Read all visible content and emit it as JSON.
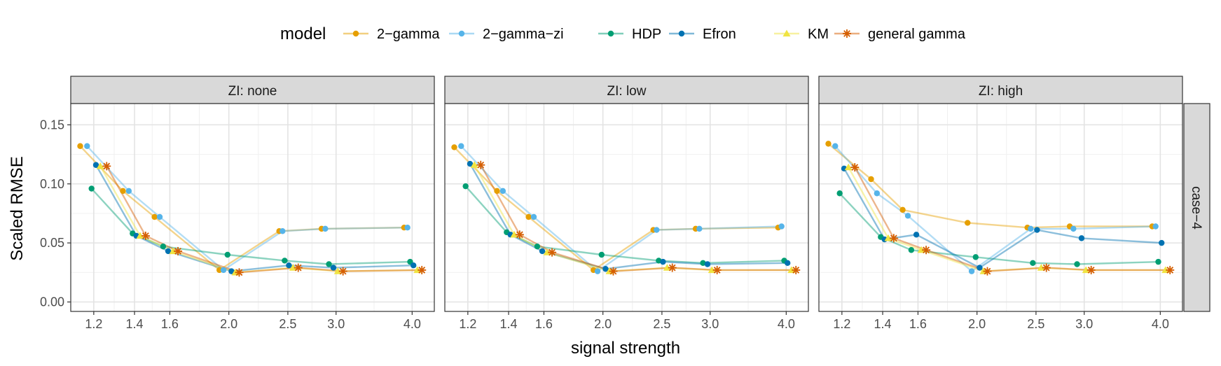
{
  "chart_data": {
    "type": "line",
    "xlabel": "signal strength",
    "ylabel": "Scaled RMSE",
    "x_ticks": [
      "1.2",
      "1.4",
      "1.6",
      "2.0",
      "2.5",
      "3.0",
      "4.0"
    ],
    "x_tick_values": [
      1.2,
      1.4,
      1.6,
      2.0,
      2.5,
      3.0,
      4.0
    ],
    "y_ticks": [
      "0.00",
      "0.05",
      "0.10",
      "0.15"
    ],
    "y_tick_values": [
      0,
      0.05,
      0.1,
      0.15
    ],
    "x_scale": "log",
    "xlim": [
      1.1,
      4.35
    ],
    "ylim": [
      -0.008,
      0.168
    ],
    "legend_title": "model",
    "legend_position": "top",
    "row_label": "case−4",
    "grid": true,
    "colors": {
      "2-gamma": "#E69F00",
      "2-gamma-zi": "#56B4E9",
      "HDP": "#009E73",
      "Efron": "#0072B2",
      "KM": "#F0E442",
      "general gamma": "#D55E00"
    },
    "series_names": [
      "2−gamma",
      "2−gamma−zi",
      "HDP",
      "Efron",
      "KM",
      "general gamma"
    ],
    "series_keys": [
      "2-gamma",
      "2-gamma-zi",
      "HDP",
      "Efron",
      "KM",
      "general gamma"
    ],
    "panels": [
      {
        "label": "ZI: none",
        "series": [
          {
            "name": "2-gamma",
            "x": [
              1.14,
              1.34,
              1.51,
              1.93,
              2.42,
              2.84,
              3.88
            ],
            "y": [
              0.132,
              0.094,
              0.072,
              0.027,
              0.06,
              0.062,
              0.063
            ]
          },
          {
            "name": "2-gamma-zi",
            "x": [
              1.17,
              1.37,
              1.54,
              1.96,
              2.45,
              2.88,
              3.93
            ],
            "y": [
              0.132,
              0.094,
              0.072,
              0.027,
              0.06,
              0.062,
              0.063
            ]
          },
          {
            "name": "HDP",
            "x": [
              1.19,
              1.39,
              1.56,
              1.99,
              2.47,
              2.92,
              3.97
            ],
            "y": [
              0.096,
              0.058,
              0.047,
              0.04,
              0.035,
              0.032,
              0.034
            ]
          },
          {
            "name": "Efron",
            "x": [
              1.21,
              1.41,
              1.59,
              2.02,
              2.51,
              2.97,
              4.02
            ],
            "y": [
              0.116,
              0.056,
              0.043,
              0.026,
              0.031,
              0.029,
              0.031
            ]
          },
          {
            "name": "KM",
            "x": [
              1.23,
              1.43,
              1.62,
              2.05,
              2.55,
              3.02,
              4.08
            ],
            "y": [
              0.115,
              0.056,
              0.043,
              0.025,
              0.029,
              0.026,
              0.027
            ]
          },
          {
            "name": "general gamma",
            "x": [
              1.26,
              1.46,
              1.65,
              2.08,
              2.6,
              3.08,
              4.15
            ],
            "y": [
              0.115,
              0.056,
              0.043,
              0.025,
              0.029,
              0.026,
              0.027
            ]
          }
        ]
      },
      {
        "label": "ZI: low",
        "series": [
          {
            "name": "2-gamma",
            "x": [
              1.14,
              1.34,
              1.51,
              1.93,
              2.42,
              2.84,
              3.88
            ],
            "y": [
              0.131,
              0.094,
              0.072,
              0.027,
              0.061,
              0.062,
              0.063
            ]
          },
          {
            "name": "2-gamma-zi",
            "x": [
              1.17,
              1.37,
              1.54,
              1.96,
              2.45,
              2.88,
              3.93
            ],
            "y": [
              0.132,
              0.094,
              0.072,
              0.026,
              0.061,
              0.062,
              0.064
            ]
          },
          {
            "name": "HDP",
            "x": [
              1.19,
              1.39,
              1.56,
              1.99,
              2.47,
              2.92,
              3.97
            ],
            "y": [
              0.098,
              0.059,
              0.047,
              0.04,
              0.035,
              0.033,
              0.035
            ]
          },
          {
            "name": "Efron",
            "x": [
              1.21,
              1.41,
              1.59,
              2.02,
              2.51,
              2.97,
              4.02
            ],
            "y": [
              0.117,
              0.057,
              0.043,
              0.028,
              0.034,
              0.032,
              0.033
            ]
          },
          {
            "name": "KM",
            "x": [
              1.23,
              1.43,
              1.62,
              2.05,
              2.55,
              3.02,
              4.08
            ],
            "y": [
              0.116,
              0.057,
              0.042,
              0.026,
              0.029,
              0.027,
              0.027
            ]
          },
          {
            "name": "general gamma",
            "x": [
              1.26,
              1.46,
              1.65,
              2.08,
              2.6,
              3.08,
              4.15
            ],
            "y": [
              0.116,
              0.057,
              0.042,
              0.026,
              0.029,
              0.027,
              0.027
            ]
          }
        ]
      },
      {
        "label": "ZI: high",
        "series": [
          {
            "name": "2-gamma",
            "x": [
              1.14,
              1.34,
              1.51,
              1.93,
              2.42,
              2.84,
              3.88
            ],
            "y": [
              0.134,
              0.104,
              0.078,
              0.067,
              0.063,
              0.064,
              0.064
            ]
          },
          {
            "name": "2-gamma-zi",
            "x": [
              1.17,
              1.37,
              1.54,
              1.96,
              2.45,
              2.88,
              3.93
            ],
            "y": [
              0.132,
              0.092,
              0.073,
              0.026,
              0.062,
              0.062,
              0.064
            ]
          },
          {
            "name": "HDP",
            "x": [
              1.19,
              1.39,
              1.56,
              1.99,
              2.47,
              2.92,
              3.97
            ],
            "y": [
              0.092,
              0.055,
              0.044,
              0.038,
              0.033,
              0.032,
              0.034
            ]
          },
          {
            "name": "Efron",
            "x": [
              1.21,
              1.41,
              1.59,
              2.02,
              2.51,
              2.97,
              4.02
            ],
            "y": [
              0.113,
              0.053,
              0.057,
              0.029,
              0.061,
              0.054,
              0.05
            ]
          },
          {
            "name": "KM",
            "x": [
              1.23,
              1.43,
              1.62,
              2.05,
              2.55,
              3.02,
              4.08
            ],
            "y": [
              0.114,
              0.054,
              0.044,
              0.026,
              0.029,
              0.027,
              0.027
            ]
          },
          {
            "name": "general gamma",
            "x": [
              1.26,
              1.46,
              1.65,
              2.08,
              2.6,
              3.08,
              4.15
            ],
            "y": [
              0.114,
              0.054,
              0.044,
              0.026,
              0.029,
              0.027,
              0.027
            ]
          }
        ]
      }
    ]
  }
}
